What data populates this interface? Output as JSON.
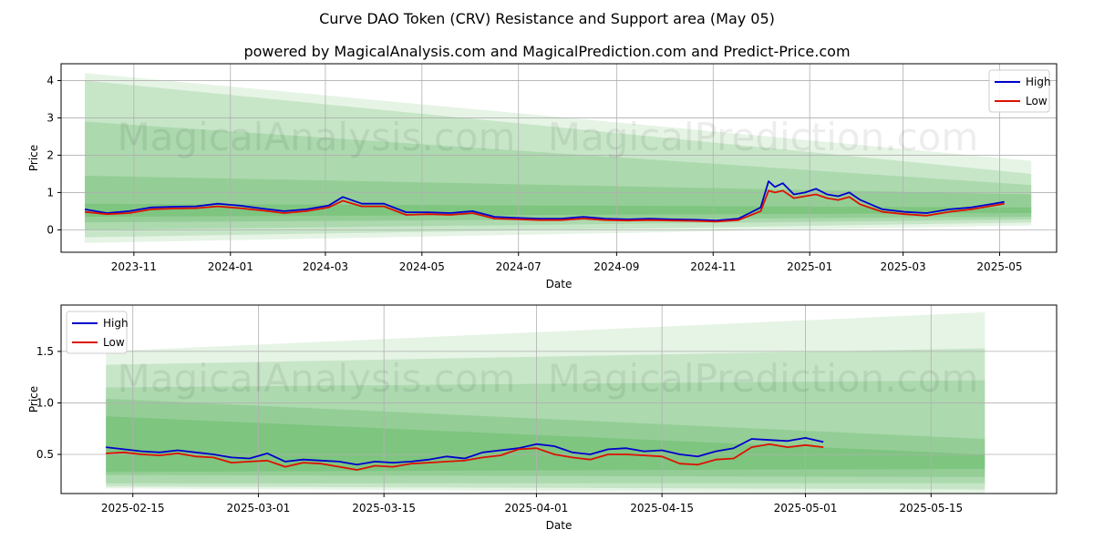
{
  "figure": {
    "title": "Curve DAO Token (CRV) Resistance and Support area (May 05)",
    "subtitle": "powered by MagicalAnalysis.com and MagicalPrediction.com and Predict-Price.com",
    "watermarks": [
      "MagicalAnalysis.com",
      "MagicalPrediction.com"
    ]
  },
  "colors": {
    "high": "#0000cc",
    "low": "#dd1100",
    "band": "#4caf50",
    "grid": "#b0b0b0"
  },
  "chart_data": [
    {
      "type": "line",
      "panel": "top",
      "title": "Curve DAO Token (CRV) Resistance and Support area (May 05)",
      "subtitle": "powered by MagicalAnalysis.com and MagicalPrediction.com and Predict-Price.com",
      "xlabel": "Date",
      "ylabel": "Price",
      "xlim": [
        "2023-09-16",
        "2025-06-06"
      ],
      "ylim": [
        -0.6,
        4.45
      ],
      "yticks": [
        0,
        1,
        2,
        3,
        4
      ],
      "xticks": [
        "2023-11",
        "2024-01",
        "2024-03",
        "2024-05",
        "2024-07",
        "2024-09",
        "2024-11",
        "2025-01",
        "2025-03",
        "2025-05"
      ],
      "grid": true,
      "legend": "top-right",
      "legend_entries": [
        "High",
        "Low"
      ],
      "bands": [
        {
          "x0": "2023-10-01",
          "x1": "2025-05-21",
          "top0": 4.2,
          "top1": 1.85,
          "bot0": -0.35,
          "bot1": 0.12,
          "opacity": 0.14
        },
        {
          "x0": "2023-10-01",
          "x1": "2025-05-21",
          "top0": 4.0,
          "top1": 1.5,
          "bot0": -0.2,
          "bot1": 0.2,
          "opacity": 0.2
        },
        {
          "x0": "2023-10-01",
          "x1": "2025-05-21",
          "top0": 2.9,
          "top1": 1.2,
          "bot0": 0.0,
          "bot1": 0.28,
          "opacity": 0.22
        },
        {
          "x0": "2023-10-01",
          "x1": "2025-05-21",
          "top0": 1.45,
          "top1": 0.95,
          "bot0": 0.2,
          "bot1": 0.35,
          "opacity": 0.25
        },
        {
          "x0": "2023-10-01",
          "x1": "2025-05-21",
          "top0": 0.7,
          "top1": 0.6,
          "bot0": 0.35,
          "bot1": 0.45,
          "opacity": 0.3
        }
      ],
      "x": [
        "2023-10-01",
        "2023-10-15",
        "2023-10-29",
        "2023-11-12",
        "2023-11-26",
        "2023-12-10",
        "2023-12-24",
        "2024-01-07",
        "2024-01-21",
        "2024-02-04",
        "2024-02-18",
        "2024-03-03",
        "2024-03-12",
        "2024-03-24",
        "2024-04-07",
        "2024-04-21",
        "2024-05-05",
        "2024-05-19",
        "2024-06-02",
        "2024-06-16",
        "2024-06-30",
        "2024-07-14",
        "2024-07-28",
        "2024-08-11",
        "2024-08-25",
        "2024-09-08",
        "2024-09-22",
        "2024-10-06",
        "2024-10-20",
        "2024-11-03",
        "2024-11-17",
        "2024-11-24",
        "2024-12-01",
        "2024-12-06",
        "2024-12-10",
        "2024-12-15",
        "2024-12-22",
        "2024-12-29",
        "2025-01-05",
        "2025-01-12",
        "2025-01-19",
        "2025-01-26",
        "2025-02-02",
        "2025-02-16",
        "2025-03-02",
        "2025-03-16",
        "2025-03-30",
        "2025-04-13",
        "2025-04-27",
        "2025-05-04"
      ],
      "series": [
        {
          "name": "High",
          "values": [
            0.55,
            0.45,
            0.5,
            0.6,
            0.62,
            0.63,
            0.7,
            0.65,
            0.57,
            0.5,
            0.55,
            0.65,
            0.88,
            0.7,
            0.7,
            0.47,
            0.47,
            0.45,
            0.5,
            0.35,
            0.32,
            0.3,
            0.3,
            0.35,
            0.3,
            0.28,
            0.3,
            0.28,
            0.27,
            0.25,
            0.3,
            0.45,
            0.6,
            1.3,
            1.15,
            1.25,
            0.95,
            1.0,
            1.1,
            0.95,
            0.9,
            1.0,
            0.8,
            0.55,
            0.48,
            0.45,
            0.55,
            0.6,
            0.7,
            0.75
          ]
        },
        {
          "name": "Low",
          "values": [
            0.48,
            0.42,
            0.45,
            0.55,
            0.57,
            0.58,
            0.63,
            0.58,
            0.52,
            0.45,
            0.5,
            0.6,
            0.78,
            0.63,
            0.63,
            0.4,
            0.42,
            0.4,
            0.45,
            0.3,
            0.28,
            0.26,
            0.26,
            0.3,
            0.26,
            0.25,
            0.26,
            0.25,
            0.24,
            0.22,
            0.26,
            0.38,
            0.5,
            1.05,
            1.0,
            1.05,
            0.85,
            0.9,
            0.95,
            0.85,
            0.8,
            0.88,
            0.68,
            0.48,
            0.42,
            0.38,
            0.48,
            0.55,
            0.65,
            0.7
          ]
        }
      ]
    },
    {
      "type": "line",
      "panel": "bottom",
      "xlabel": "Date",
      "ylabel": "Price",
      "xlim": [
        "2025-02-07",
        "2025-05-29"
      ],
      "ylim": [
        0.12,
        1.95
      ],
      "yticks": [
        0.5,
        1.0,
        1.5
      ],
      "xticks": [
        "2025-02-15",
        "2025-03-01",
        "2025-03-15",
        "2025-04-01",
        "2025-04-15",
        "2025-05-01",
        "2025-05-15"
      ],
      "grid": true,
      "legend": "top-left",
      "legend_entries": [
        "High",
        "Low"
      ],
      "bands": [
        {
          "x0": "2025-02-12",
          "x1": "2025-05-21",
          "top0": 1.5,
          "top1": 1.88,
          "bot0": 0.17,
          "bot1": 0.12,
          "opacity": 0.14
        },
        {
          "x0": "2025-02-12",
          "x1": "2025-05-21",
          "top0": 1.37,
          "top1": 1.53,
          "bot0": 0.19,
          "bot1": 0.16,
          "opacity": 0.2
        },
        {
          "x0": "2025-02-12",
          "x1": "2025-05-21",
          "top0": 1.15,
          "top1": 1.22,
          "bot0": 0.22,
          "bot1": 0.22,
          "opacity": 0.22
        },
        {
          "x0": "2025-02-12",
          "x1": "2025-05-21",
          "top0": 1.04,
          "top1": 0.65,
          "bot0": 0.3,
          "bot1": 0.28,
          "opacity": 0.25
        },
        {
          "x0": "2025-02-12",
          "x1": "2025-05-21",
          "top0": 0.87,
          "top1": 0.5,
          "bot0": 0.33,
          "bot1": 0.36,
          "opacity": 0.3
        }
      ],
      "x": [
        "2025-02-12",
        "2025-02-14",
        "2025-02-16",
        "2025-02-18",
        "2025-02-20",
        "2025-02-22",
        "2025-02-24",
        "2025-02-26",
        "2025-02-28",
        "2025-03-02",
        "2025-03-04",
        "2025-03-06",
        "2025-03-08",
        "2025-03-10",
        "2025-03-12",
        "2025-03-14",
        "2025-03-16",
        "2025-03-18",
        "2025-03-20",
        "2025-03-22",
        "2025-03-24",
        "2025-03-26",
        "2025-03-28",
        "2025-03-30",
        "2025-04-01",
        "2025-04-03",
        "2025-04-05",
        "2025-04-07",
        "2025-04-09",
        "2025-04-11",
        "2025-04-13",
        "2025-04-15",
        "2025-04-17",
        "2025-04-19",
        "2025-04-21",
        "2025-04-23",
        "2025-04-25",
        "2025-04-27",
        "2025-04-29",
        "2025-05-01",
        "2025-05-03"
      ],
      "series": [
        {
          "name": "High",
          "values": [
            0.57,
            0.55,
            0.53,
            0.52,
            0.54,
            0.52,
            0.5,
            0.47,
            0.46,
            0.51,
            0.43,
            0.45,
            0.44,
            0.43,
            0.4,
            0.43,
            0.42,
            0.43,
            0.45,
            0.48,
            0.46,
            0.52,
            0.54,
            0.56,
            0.6,
            0.58,
            0.52,
            0.5,
            0.55,
            0.56,
            0.53,
            0.54,
            0.5,
            0.48,
            0.53,
            0.56,
            0.65,
            0.64,
            0.63,
            0.66,
            0.62
          ]
        },
        {
          "name": "Low",
          "values": [
            0.51,
            0.52,
            0.5,
            0.49,
            0.51,
            0.48,
            0.47,
            0.42,
            0.43,
            0.44,
            0.38,
            0.42,
            0.41,
            0.38,
            0.35,
            0.39,
            0.38,
            0.41,
            0.42,
            0.43,
            0.44,
            0.47,
            0.49,
            0.55,
            0.56,
            0.5,
            0.47,
            0.45,
            0.5,
            0.5,
            0.49,
            0.48,
            0.41,
            0.4,
            0.45,
            0.46,
            0.57,
            0.6,
            0.57,
            0.59,
            0.57
          ]
        }
      ]
    }
  ]
}
